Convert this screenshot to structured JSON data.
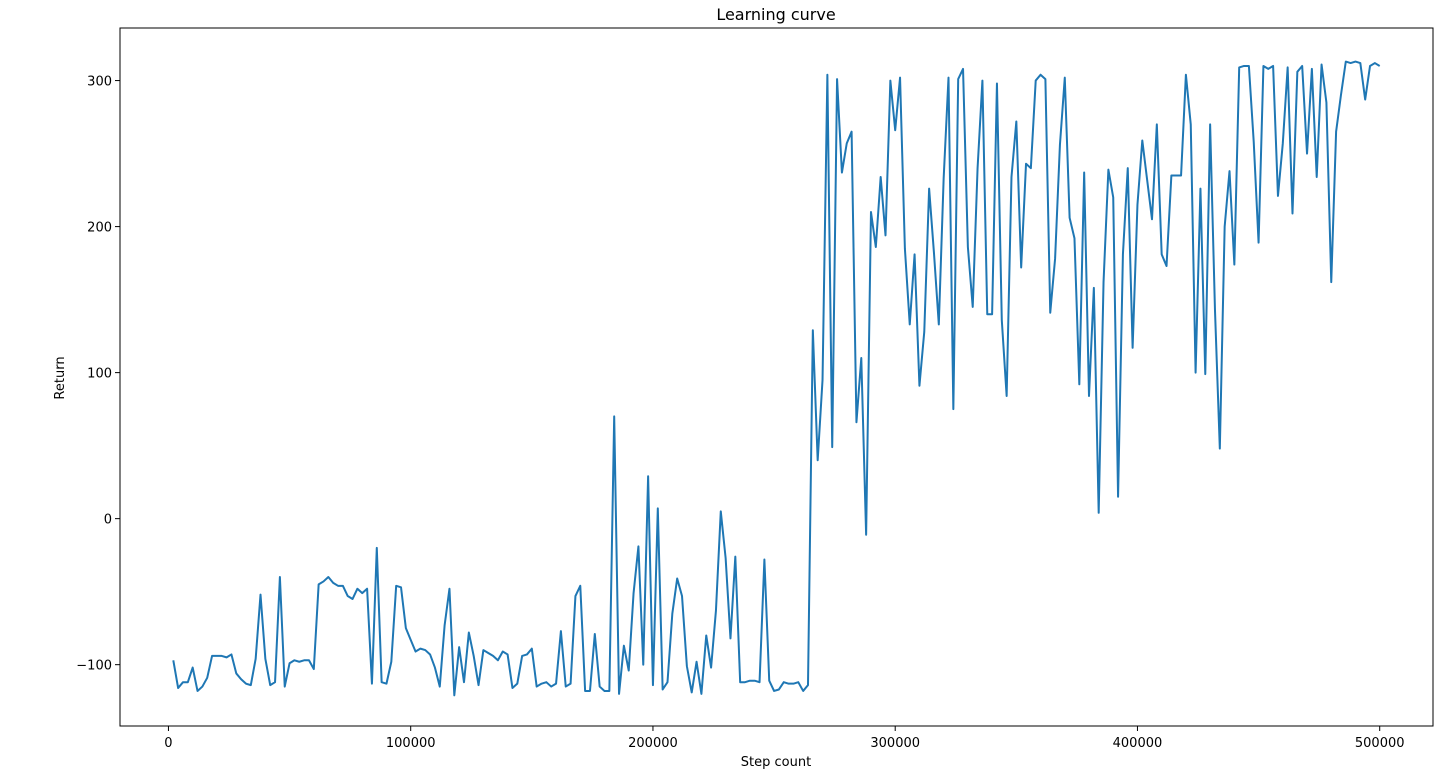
{
  "chart_data": {
    "type": "line",
    "title": "Learning curve",
    "xlabel": "Step count",
    "ylabel": "Return",
    "xlim": [
      -20000,
      522000
    ],
    "ylim": [
      -142,
      336
    ],
    "xticks": [
      0,
      100000,
      200000,
      300000,
      400000,
      500000
    ],
    "xtick_labels": [
      "0",
      "100000",
      "200000",
      "300000",
      "400000",
      "500000"
    ],
    "yticks": [
      -100,
      0,
      100,
      200,
      300
    ],
    "ytick_labels": [
      "−100",
      "0",
      "100",
      "200",
      "300"
    ],
    "grid": false,
    "line_color": "#1f77b4",
    "series": [
      {
        "x": [
          2000,
          4000,
          6000,
          8000,
          10000,
          12000,
          14000,
          16000,
          18000,
          20000,
          22000,
          24000,
          26000,
          28000,
          30000,
          32000,
          34000,
          36000,
          38000,
          40000,
          42000,
          44000,
          46000,
          48000,
          50000,
          52000,
          54000,
          56000,
          58000,
          60000,
          62000,
          64000,
          66000,
          68000,
          70000,
          72000,
          74000,
          76000,
          78000,
          80000,
          82000,
          84000,
          86000,
          88000,
          90000,
          92000,
          94000,
          96000,
          98000,
          100000,
          102000,
          104000,
          106000,
          108000,
          110000,
          112000,
          114000,
          116000,
          118000,
          120000,
          122000,
          124000,
          126000,
          128000,
          130000,
          132000,
          134000,
          136000,
          138000,
          140000,
          142000,
          144000,
          146000,
          148000,
          150000,
          152000,
          154000,
          156000,
          158000,
          160000,
          162000,
          164000,
          166000,
          168000,
          170000,
          172000,
          174000,
          176000,
          178000,
          180000,
          182000,
          184000,
          186000,
          188000,
          190000,
          192000,
          194000,
          196000,
          198000,
          200000,
          202000,
          204000,
          206000,
          208000,
          210000,
          212000,
          214000,
          216000,
          218000,
          220000,
          222000,
          224000,
          226000,
          228000,
          230000,
          232000,
          234000,
          236000,
          238000,
          240000,
          242000,
          244000,
          246000,
          248000,
          250000,
          252000,
          254000,
          256000,
          258000,
          260000,
          262000,
          264000,
          266000,
          268000,
          270000,
          272000,
          274000,
          276000,
          278000,
          280000,
          282000,
          284000,
          286000,
          288000,
          290000,
          292000,
          294000,
          296000,
          298000,
          300000,
          302000,
          304000,
          306000,
          308000,
          310000,
          312000,
          314000,
          316000,
          318000,
          320000,
          322000,
          324000,
          326000,
          328000,
          330000,
          332000,
          334000,
          336000,
          338000,
          340000,
          342000,
          344000,
          346000,
          348000,
          350000,
          352000,
          354000,
          356000,
          358000,
          360000,
          362000,
          364000,
          366000,
          368000,
          370000,
          372000,
          374000,
          376000,
          378000,
          380000,
          382000,
          384000,
          386000,
          388000,
          390000,
          392000,
          394000,
          396000,
          398000,
          400000,
          402000,
          404000,
          406000,
          408000,
          410000,
          412000,
          414000,
          416000,
          418000,
          420000,
          422000,
          424000,
          426000,
          428000,
          430000,
          432000,
          434000,
          436000,
          438000,
          440000,
          442000,
          444000,
          446000,
          448000,
          450000,
          452000,
          454000,
          456000,
          458000,
          460000,
          462000,
          464000,
          466000,
          468000,
          470000,
          472000,
          474000,
          476000,
          478000,
          480000,
          482000,
          484000,
          486000,
          488000,
          490000,
          492000,
          494000,
          496000,
          498000,
          500000
        ],
        "y": [
          -97,
          -116,
          -112,
          -112,
          -102,
          -118,
          -115,
          -109,
          -94,
          -94,
          -94,
          -95,
          -93,
          -106,
          -110,
          -113,
          -114,
          -96,
          -52,
          -96,
          -114,
          -112,
          -40,
          -115,
          -99,
          -97,
          -98,
          -97,
          -97,
          -103,
          -45,
          -43,
          -40,
          -44,
          -46,
          -46,
          -53,
          -55,
          -48,
          -51,
          -48,
          -113,
          -20,
          -112,
          -113,
          -98,
          -46,
          -47,
          -75,
          -83,
          -91,
          -89,
          -90,
          -93,
          -102,
          -115,
          -73,
          -48,
          -121,
          -88,
          -112,
          -78,
          -94,
          -114,
          -90,
          -92,
          -94,
          -97,
          -91,
          -93,
          -116,
          -113,
          -94,
          -93,
          -89,
          -115,
          -113,
          -112,
          -115,
          -113,
          -77,
          -115,
          -113,
          -53,
          -46,
          -118,
          -118,
          -79,
          -115,
          -118,
          -118,
          70,
          -120,
          -87,
          -104,
          -51,
          -19,
          -100,
          29,
          -114,
          7,
          -117,
          -112,
          -65,
          -41,
          -53,
          -101,
          -119,
          -98,
          -120,
          -80,
          -102,
          -63,
          5,
          -27,
          -82,
          -26,
          -112,
          -112,
          -111,
          -111,
          -112,
          -28,
          -111,
          -118,
          -117,
          -112,
          -113,
          -113,
          -112,
          -118,
          -114,
          129,
          40,
          95,
          304,
          49,
          301,
          237,
          257,
          265,
          66,
          110,
          -11,
          210,
          186,
          234,
          194,
          300,
          266,
          302,
          185,
          133,
          181,
          91,
          128,
          226,
          182,
          133,
          233,
          302,
          75,
          301,
          308,
          186,
          145,
          240,
          300,
          140,
          140,
          298,
          136,
          84,
          234,
          272,
          172,
          243,
          240,
          300,
          304,
          301,
          141,
          178,
          256,
          302,
          206,
          192,
          92,
          237,
          84,
          158,
          4,
          162,
          239,
          220,
          15,
          181,
          240,
          117,
          215,
          259,
          232,
          205,
          270,
          181,
          173,
          235,
          235,
          235,
          304,
          270,
          100,
          226,
          99,
          270,
          143,
          48,
          200,
          238,
          174,
          309,
          310,
          310,
          258,
          189,
          310,
          308,
          310,
          221,
          257,
          309,
          209,
          306,
          310,
          250,
          308,
          234,
          311,
          285,
          162,
          265,
          290,
          313,
          312,
          313,
          312,
          287,
          310,
          312,
          310
        ]
      }
    ]
  }
}
